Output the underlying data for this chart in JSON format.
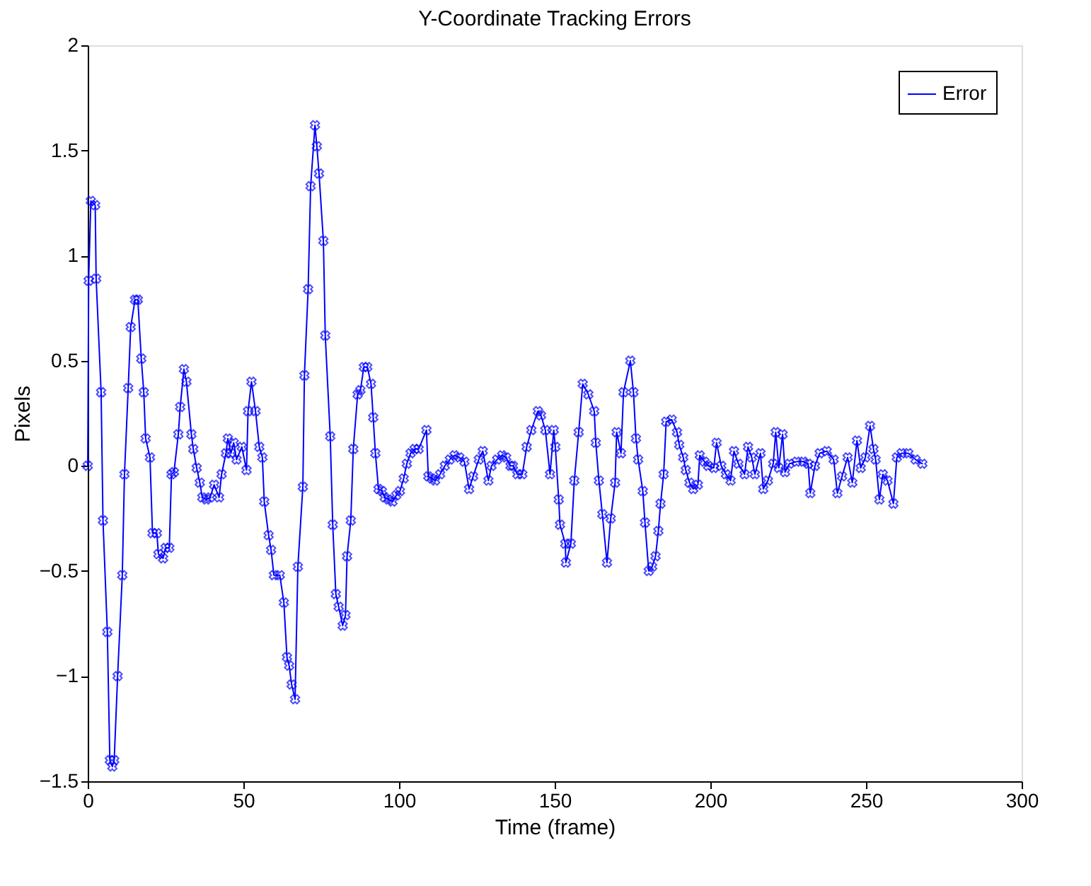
{
  "chart_data": {
    "type": "line",
    "title": "Y-Coordinate Tracking Errors",
    "xlabel": "Time (frame)",
    "ylabel": "Pixels",
    "xlim": [
      0,
      300
    ],
    "xticks": [
      0,
      50,
      100,
      150,
      200,
      250,
      300
    ],
    "ylim": [
      -1.5,
      2
    ],
    "yticks": [
      -1.5,
      -1,
      -0.5,
      0,
      0.5,
      1,
      1.5,
      2
    ],
    "grid": false,
    "legend": "top right",
    "marker": "cross",
    "line_style": "solid",
    "series": [
      {
        "name": "Error",
        "color": "#0000ff",
        "x": [
          0,
          0.3,
          1,
          2.4,
          2.7,
          4.3,
          4.9,
          6.3,
          7.1,
          7.9,
          8.5,
          9.6,
          11.1,
          11.8,
          13,
          13.8,
          15.2,
          16.1,
          17.2,
          18,
          18.6,
          20,
          20.8,
          22.2,
          22.7,
          24.2,
          25,
          26.2,
          26.9,
          27.7,
          29.1,
          29.7,
          30.9,
          31.7,
          33.3,
          33.9,
          35,
          36,
          36.8,
          38.1,
          39.3,
          40.6,
          42.2,
          43,
          44.4,
          45,
          46,
          46.9,
          47.8,
          49.5,
          51,
          51.5,
          52.6,
          53.9,
          55.1,
          56.1,
          56.7,
          58.1,
          58.9,
          59.8,
          61.7,
          63,
          64,
          64.7,
          65.5,
          66.6,
          67.5,
          69.1,
          69.6,
          70.8,
          71.6,
          73,
          73.6,
          74.3,
          75.7,
          76.3,
          77.9,
          78.7,
          79.7,
          80.6,
          81.9,
          82.8,
          83.3,
          84.5,
          85.3,
          86.7,
          87.6,
          88.7,
          89.8,
          91,
          91.7,
          92.4,
          93.4,
          94.5,
          95.4,
          96.6,
          97.9,
          99.1,
          100.3,
          101.5,
          102.5,
          103.7,
          105,
          106.3,
          108.8,
          109.4,
          110.5,
          111.6,
          113.2,
          114.7,
          116.3,
          117.8,
          119.4,
          121,
          122.5,
          123.8,
          125.6,
          126.9,
          128.7,
          129.7,
          131.5,
          133.1,
          134.4,
          135.8,
          136.6,
          138,
          139.6,
          141,
          142.5,
          144.6,
          145.6,
          147,
          148.5,
          149.7,
          150.2,
          151.3,
          151.7,
          153.4,
          153.6,
          155.2,
          156.3,
          157.7,
          159,
          160.8,
          162.7,
          163.2,
          164.2,
          165.3,
          166.8,
          168,
          169.4,
          169.9,
          171.3,
          172.1,
          174.3,
          175.3,
          176.1,
          176.8,
          178.3,
          179,
          180.2,
          181.3,
          182.4,
          183.3,
          184,
          185,
          185.8,
          187.6,
          189.3,
          190,
          191.3,
          192.1,
          193.3,
          194.5,
          196,
          196.6,
          198.1,
          199.3,
          201.1,
          202,
          203.5,
          205,
          206.5,
          207.6,
          209,
          211,
          212.1,
          213.3,
          214.3,
          216.1,
          217,
          218.5,
          220.2,
          221,
          222,
          223.2,
          224,
          225.4,
          227.7,
          229.9,
          231.4,
          232.1,
          233.6,
          235.1,
          237.4,
          239.6,
          240.8,
          242.3,
          244.1,
          245.6,
          247.1,
          248.3,
          249.8,
          251.3,
          252.4,
          253.1,
          254.3,
          255.4,
          256.9,
          258.8,
          259.9,
          261.4,
          263.6,
          265.9,
          268.1
        ],
        "values": [
          0,
          0.88,
          1.26,
          1.24,
          0.89,
          0.35,
          -0.26,
          -0.79,
          -1.4,
          -1.43,
          -1.4,
          -1.0,
          -0.52,
          -0.04,
          0.37,
          0.66,
          0.79,
          0.79,
          0.51,
          0.35,
          0.13,
          0.04,
          -0.32,
          -0.32,
          -0.42,
          -0.44,
          -0.39,
          -0.39,
          -0.04,
          -0.03,
          0.15,
          0.28,
          0.46,
          0.4,
          0.15,
          0.08,
          -0.01,
          -0.08,
          -0.15,
          -0.16,
          -0.15,
          -0.09,
          -0.15,
          -0.04,
          0.06,
          0.13,
          0.06,
          0.11,
          0.03,
          0.09,
          -0.02,
          0.26,
          0.4,
          0.26,
          0.09,
          0.04,
          -0.17,
          -0.33,
          -0.4,
          -0.52,
          -0.52,
          -0.65,
          -0.91,
          -0.95,
          -1.04,
          -1.11,
          -0.48,
          -0.1,
          0.43,
          0.84,
          1.33,
          1.62,
          1.52,
          1.39,
          1.07,
          0.62,
          0.14,
          -0.28,
          -0.61,
          -0.67,
          -0.76,
          -0.71,
          -0.43,
          -0.26,
          0.08,
          0.34,
          0.36,
          0.47,
          0.47,
          0.39,
          0.23,
          0.06,
          -0.11,
          -0.12,
          -0.15,
          -0.16,
          -0.17,
          -0.14,
          -0.12,
          -0.06,
          0.01,
          0.06,
          0.08,
          0.08,
          0.17,
          -0.05,
          -0.06,
          -0.07,
          -0.04,
          0,
          0.03,
          0.05,
          0.04,
          0.02,
          -0.11,
          -0.05,
          0.03,
          0.07,
          -0.07,
          0,
          0.03,
          0.05,
          0.04,
          0,
          0,
          -0.04,
          -0.04,
          0.09,
          0.17,
          0.26,
          0.24,
          0.17,
          -0.04,
          0.17,
          0.09,
          -0.16,
          -0.28,
          -0.37,
          -0.46,
          -0.37,
          -0.07,
          0.16,
          0.39,
          0.34,
          0.26,
          0.11,
          -0.07,
          -0.23,
          -0.46,
          -0.25,
          -0.08,
          0.16,
          0.06,
          0.35,
          0.5,
          0.35,
          0.13,
          0.03,
          -0.12,
          -0.27,
          -0.5,
          -0.48,
          -0.43,
          -0.31,
          -0.18,
          -0.04,
          0.21,
          0.22,
          0.16,
          0.1,
          0.04,
          -0.02,
          -0.08,
          -0.11,
          -0.09,
          0.05,
          0.02,
          0,
          -0.01,
          0.11,
          0,
          -0.04,
          -0.07,
          0.07,
          0.01,
          -0.04,
          0.09,
          0.04,
          -0.04,
          0.06,
          -0.11,
          -0.07,
          0.01,
          0.16,
          -0.01,
          0.15,
          -0.03,
          0.01,
          0.02,
          0.02,
          0.01,
          -0.13,
          0,
          0.06,
          0.07,
          0.03,
          -0.13,
          -0.05,
          0.04,
          -0.08,
          0.12,
          -0.01,
          0.04,
          0.19,
          0.08,
          0.03,
          -0.16,
          -0.04,
          -0.07,
          -0.18,
          0.04,
          0.06,
          0.06,
          0.03,
          0.01
        ]
      }
    ]
  }
}
